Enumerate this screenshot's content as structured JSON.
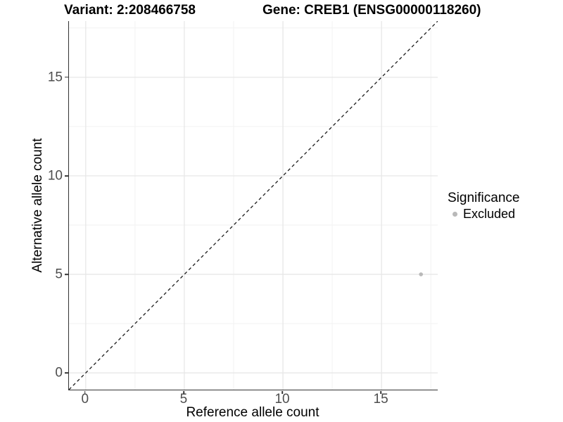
{
  "header": {
    "variant_title": "Variant: 2:208466758",
    "gene_title": "Gene: CREB1 (ENSG00000118260)"
  },
  "legend": {
    "title": "Significance",
    "items": [
      {
        "label": "Excluded",
        "color": "#b9b9b9"
      }
    ]
  },
  "chart_data": {
    "type": "scatter",
    "title": "Variant: 2:208466758 — Gene: CREB1 (ENSG00000118260)",
    "xlabel": "Reference allele count",
    "ylabel": "Alternative allele count",
    "xlim": [
      -0.85,
      17.85
    ],
    "ylim": [
      -0.85,
      17.85
    ],
    "x_major_ticks": [
      0,
      5,
      10,
      15
    ],
    "y_major_ticks": [
      0,
      5,
      10,
      15
    ],
    "x_minor_ticks": [
      2.5,
      7.5,
      12.5,
      17.5
    ],
    "y_minor_ticks": [
      2.5,
      7.5,
      12.5,
      17.5
    ],
    "grid": "major+minor",
    "legend_position": "right",
    "series": [
      {
        "name": "Excluded",
        "color": "#b9b9b9",
        "point_radius_px": 2.8,
        "points": [
          {
            "x": 17,
            "y": 5
          }
        ]
      }
    ],
    "reference_line": {
      "kind": "identity y=x",
      "style": "dashed",
      "color": "#1a1a1a"
    }
  },
  "colors": {
    "background": "#ffffff",
    "axis_line": "#333333",
    "tick_label": "#4d4d4d",
    "grid_major": "#e7e7e7",
    "grid_minor": "#f2f2f2",
    "point": "#b9b9b9",
    "dashed_line": "#1a1a1a"
  }
}
